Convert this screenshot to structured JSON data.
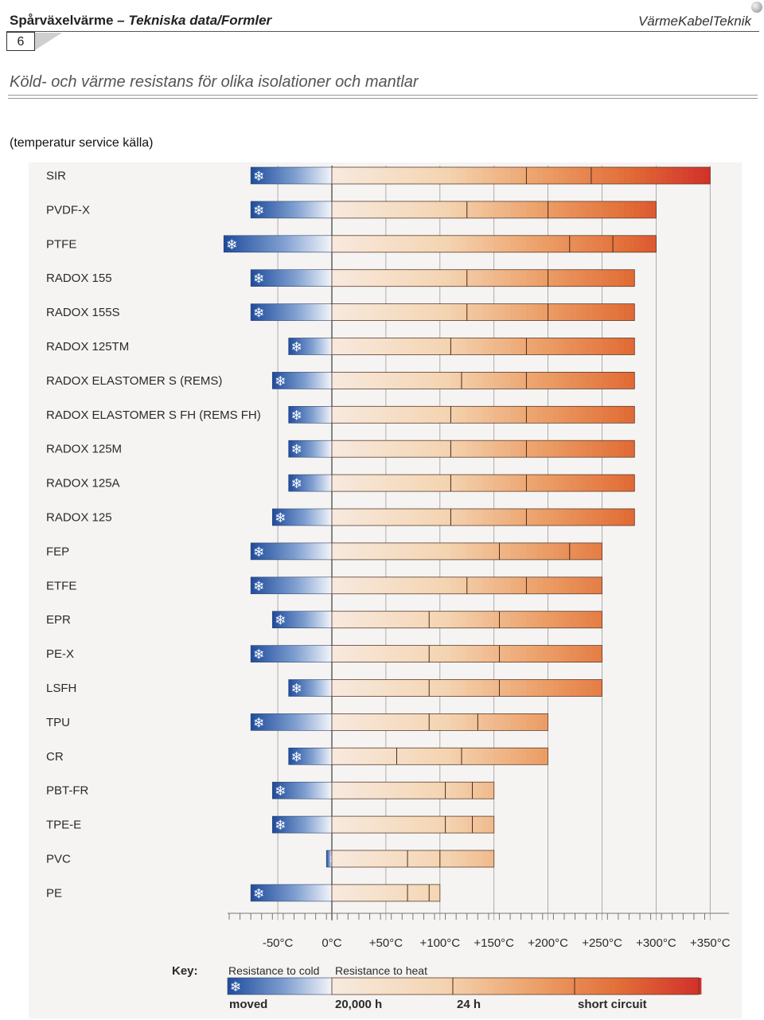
{
  "header": {
    "title_main": "Spårväxelvärme – ",
    "title_italic": "Tekniska data/Formler",
    "brand": "VärmeKabelTeknik",
    "page_number": "6"
  },
  "subtitle": "Köld- och värme resistans för olika isolationer och mantlar",
  "source": "(temperatur service källa)",
  "chart_data": {
    "type": "bar",
    "title": "",
    "xlabel": "",
    "xlim": [
      -100,
      350
    ],
    "x_ticks": [
      -50,
      0,
      50,
      100,
      150,
      200,
      250,
      300,
      350
    ],
    "x_tick_labels": [
      "-50°C",
      "0°C",
      "+50°C",
      "+100°C",
      "+150°C",
      "+200°C",
      "+250°C",
      "+300°C",
      "+350°C"
    ],
    "snowflake": "❄",
    "series": [
      {
        "name": "SIR",
        "cold": -75,
        "d20000": 180,
        "d24h": 240,
        "short_circuit": 350
      },
      {
        "name": "PVDF-X",
        "cold": -75,
        "d20000": 125,
        "d24h": 200,
        "short_circuit": 300
      },
      {
        "name": "PTFE",
        "cold": -100,
        "d20000": 220,
        "d24h": 260,
        "short_circuit": 300
      },
      {
        "name": "RADOX 155",
        "cold": -75,
        "d20000": 125,
        "d24h": 200,
        "short_circuit": 280
      },
      {
        "name": "RADOX 155S",
        "cold": -75,
        "d20000": 125,
        "d24h": 200,
        "short_circuit": 280
      },
      {
        "name": "RADOX 125TM",
        "cold": -40,
        "d20000": 110,
        "d24h": 180,
        "short_circuit": 280
      },
      {
        "name": "RADOX ELASTOMER S (REMS)",
        "cold": -55,
        "d20000": 120,
        "d24h": 180,
        "short_circuit": 280
      },
      {
        "name": "RADOX ELASTOMER S FH (REMS FH)",
        "cold": -40,
        "d20000": 110,
        "d24h": 180,
        "short_circuit": 280
      },
      {
        "name": "RADOX 125M",
        "cold": -40,
        "d20000": 110,
        "d24h": 180,
        "short_circuit": 280
      },
      {
        "name": "RADOX 125A",
        "cold": -40,
        "d20000": 110,
        "d24h": 180,
        "short_circuit": 280
      },
      {
        "name": "RADOX 125",
        "cold": -55,
        "d20000": 110,
        "d24h": 180,
        "short_circuit": 280
      },
      {
        "name": "FEP",
        "cold": -75,
        "d20000": 155,
        "d24h": 220,
        "short_circuit": 250
      },
      {
        "name": "ETFE",
        "cold": -75,
        "d20000": 125,
        "d24h": 180,
        "short_circuit": 250
      },
      {
        "name": "EPR",
        "cold": -55,
        "d20000": 90,
        "d24h": 155,
        "short_circuit": 250
      },
      {
        "name": "PE-X",
        "cold": -75,
        "d20000": 90,
        "d24h": 155,
        "short_circuit": 250
      },
      {
        "name": "LSFH",
        "cold": -40,
        "d20000": 90,
        "d24h": 155,
        "short_circuit": 250
      },
      {
        "name": "TPU",
        "cold": -75,
        "d20000": 90,
        "d24h": 135,
        "short_circuit": 200
      },
      {
        "name": "CR",
        "cold": -40,
        "d20000": 60,
        "d24h": 120,
        "short_circuit": 200
      },
      {
        "name": "PBT-FR",
        "cold": -55,
        "d20000": 105,
        "d24h": 130,
        "short_circuit": 150
      },
      {
        "name": "TPE-E",
        "cold": -55,
        "d20000": 105,
        "d24h": 130,
        "short_circuit": 150
      },
      {
        "name": "PVC",
        "cold": -5,
        "d20000": 70,
        "d24h": 100,
        "short_circuit": 150
      },
      {
        "name": "PE",
        "cold": -75,
        "d20000": 70,
        "d24h": 90,
        "short_circuit": 100
      }
    ],
    "legend": {
      "key_label": "Key:",
      "cold_label": "Resistance to cold",
      "heat_label": "Resistance to heat",
      "moved": "moved",
      "h20000": "20,000 h",
      "h24": "24 h",
      "short_circuit": "short circuit"
    }
  }
}
